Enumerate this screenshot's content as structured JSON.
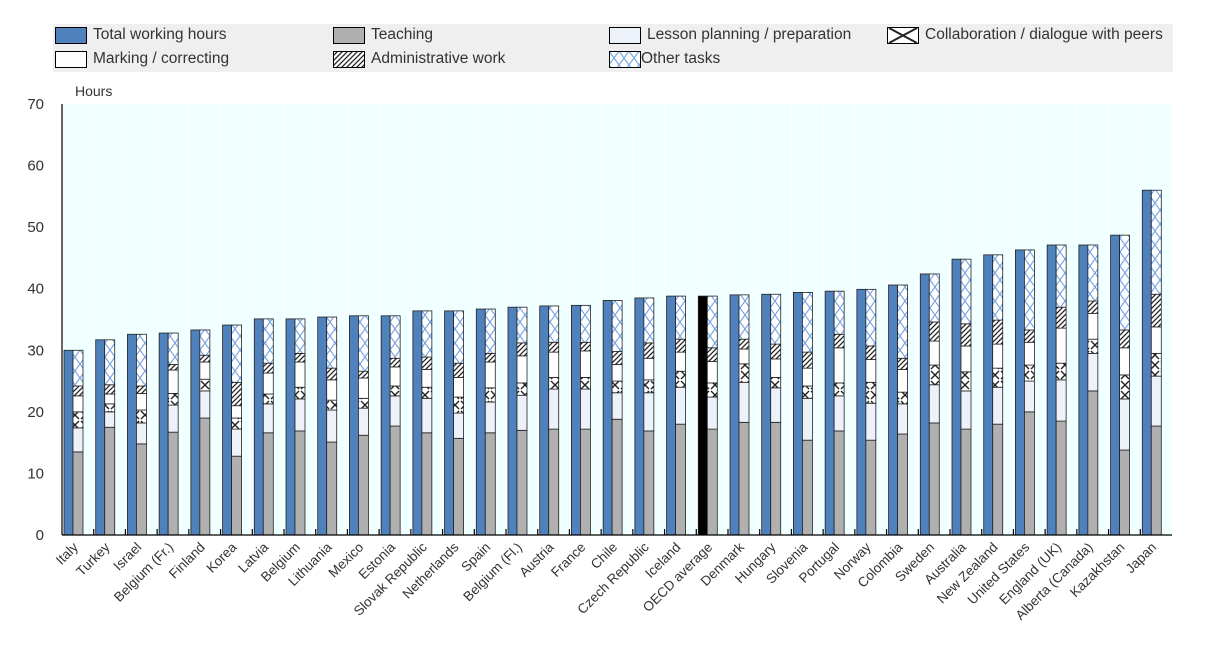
{
  "chart_data": {
    "type": "bar",
    "ylabel": "Hours",
    "ylim": [
      0,
      70
    ],
    "yticks": [
      0,
      10,
      20,
      30,
      40,
      50,
      60,
      70
    ],
    "grid": false,
    "legend_position": "top",
    "categories": [
      "Italy",
      "Turkey",
      "Israel",
      "Belgium (Fr.)",
      "Finland",
      "Korea",
      "Latvia",
      "Belgium",
      "Lithuania",
      "Mexico",
      "Estonia",
      "Slovak Republic",
      "Netherlands",
      "Spain",
      "Belgium (Fl.)",
      "Austria",
      "France",
      "Chile",
      "Czech Republic",
      "Iceland",
      "OECD average",
      "Denmark",
      "Hungary",
      "Slovenia",
      "Portugal",
      "Norway",
      "Colombia",
      "Sweden",
      "Australia",
      "New Zealand",
      "United States",
      "England (UK)",
      "Alberta (Canada)",
      "Kazakhstan",
      "Japan"
    ],
    "highlight_category": "OECD average",
    "total_series": {
      "name": "Total working hours",
      "color": "#4f81bd",
      "highlight_color": "#000000",
      "values": [
        30.0,
        31.7,
        32.6,
        32.8,
        33.3,
        34.1,
        35.1,
        35.1,
        35.4,
        35.6,
        35.6,
        36.4,
        36.4,
        36.7,
        37.0,
        37.2,
        37.3,
        38.1,
        38.5,
        38.8,
        38.8,
        39.0,
        39.1,
        39.4,
        39.6,
        39.9,
        40.6,
        42.4,
        44.8,
        45.5,
        46.3,
        47.1,
        47.1,
        48.7,
        56.0
      ]
    },
    "stacked_series": [
      {
        "name": "Teaching",
        "color": "#b0b0b0",
        "pattern": "solid",
        "values": [
          13.5,
          17.5,
          14.8,
          16.7,
          19.0,
          12.8,
          16.6,
          16.9,
          15.1,
          16.2,
          17.7,
          16.6,
          15.7,
          16.6,
          17.0,
          17.2,
          17.2,
          18.8,
          16.9,
          18.0,
          17.2,
          18.3,
          18.3,
          15.4,
          16.9,
          15.4,
          16.4,
          18.2,
          17.2,
          18.0,
          20.0,
          18.5,
          23.4,
          13.8,
          17.7
        ]
      },
      {
        "name": "Lesson planning / preparation",
        "color": "#edf1f9",
        "pattern": "solid",
        "values": [
          3.9,
          2.5,
          3.4,
          4.4,
          4.4,
          4.4,
          4.7,
          5.2,
          5.2,
          4.4,
          4.9,
          5.6,
          4.1,
          5.0,
          5.7,
          6.5,
          6.5,
          4.3,
          6.2,
          6.0,
          5.2,
          6.5,
          5.6,
          6.8,
          5.7,
          6.0,
          4.9,
          6.2,
          6.2,
          6.0,
          5.0,
          6.7,
          6.1,
          8.3,
          8.1
        ]
      },
      {
        "name": "Collaboration / dialogue with peers",
        "color": "#000000",
        "pattern": "cross",
        "values": [
          2.6,
          1.3,
          2.1,
          1.9,
          1.9,
          1.8,
          1.6,
          1.9,
          1.6,
          1.6,
          1.6,
          1.8,
          2.6,
          2.3,
          2.0,
          1.9,
          1.9,
          1.9,
          2.1,
          2.6,
          2.3,
          3.0,
          1.7,
          2.0,
          2.1,
          3.4,
          1.9,
          3.2,
          3.1,
          3.1,
          2.6,
          2.7,
          2.3,
          3.9,
          3.7
        ]
      },
      {
        "name": "Marking / correcting",
        "color": "#ffffff",
        "pattern": "solid",
        "values": [
          2.6,
          1.6,
          2.7,
          3.8,
          2.8,
          2.0,
          3.4,
          4.1,
          3.3,
          3.3,
          3.1,
          2.9,
          3.2,
          4.2,
          4.4,
          4.1,
          4.3,
          2.7,
          3.5,
          3.1,
          3.5,
          2.4,
          3.0,
          2.9,
          5.7,
          3.7,
          3.7,
          3.9,
          4.2,
          3.9,
          3.7,
          5.7,
          4.2,
          4.4,
          4.3
        ]
      },
      {
        "name": "Administrative work",
        "color": "#000000",
        "pattern": "diagonal",
        "values": [
          1.6,
          1.5,
          1.2,
          0.9,
          1.1,
          3.8,
          1.6,
          1.4,
          1.9,
          1.1,
          1.4,
          2.0,
          2.3,
          1.4,
          2.1,
          1.6,
          1.4,
          2.1,
          2.5,
          2.1,
          2.2,
          1.6,
          2.4,
          2.6,
          2.2,
          2.2,
          1.8,
          3.1,
          3.6,
          3.9,
          2.0,
          3.4,
          2.0,
          2.9,
          5.3
        ]
      },
      {
        "name": "Other tasks",
        "color": "#6a9be0",
        "pattern": "large-x",
        "values": [
          5.8,
          7.3,
          8.4,
          5.1,
          4.1,
          9.3,
          7.2,
          5.6,
          8.3,
          9.0,
          6.9,
          7.5,
          8.5,
          7.2,
          5.8,
          5.9,
          6.0,
          8.3,
          7.3,
          7.0,
          8.4,
          7.2,
          8.1,
          9.7,
          7.0,
          9.2,
          11.9,
          7.8,
          10.5,
          10.6,
          13.0,
          10.1,
          9.1,
          15.4,
          16.9
        ]
      }
    ]
  },
  "legend": [
    {
      "label": "Total working hours"
    },
    {
      "label": "Teaching"
    },
    {
      "label": "Lesson planning / preparation"
    },
    {
      "label": "Collaboration / dialogue with peers"
    },
    {
      "label": "Marking / correcting"
    },
    {
      "label": "Administrative work"
    },
    {
      "label": "Other tasks"
    }
  ]
}
